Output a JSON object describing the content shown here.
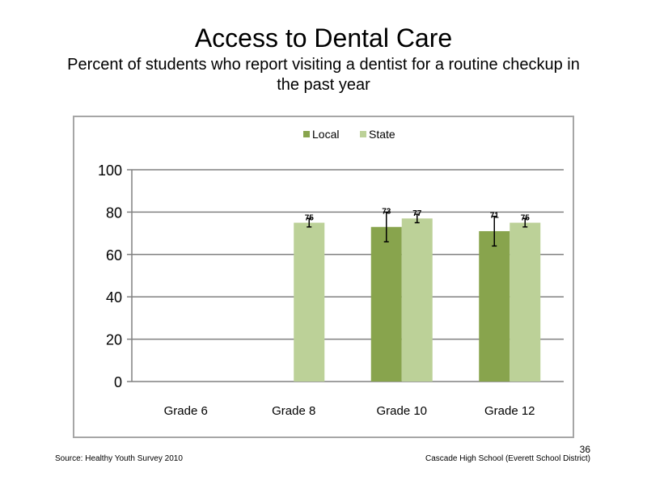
{
  "slide": {
    "title": "Access to Dental Care",
    "subtitle": "Percent of students who report visiting a dentist for a routine checkup in the past year",
    "source": "Source: Healthy Youth Survey 2010",
    "school": "Cascade High School (Everett School District)",
    "page_number": "36"
  },
  "chart_data": {
    "type": "bar",
    "title": "",
    "xlabel": "",
    "ylabel": "",
    "categories": [
      "Grade 6",
      "Grade 8",
      "Grade 10",
      "Grade 12"
    ],
    "ylim": [
      0,
      100
    ],
    "yticks": [
      0,
      20,
      40,
      60,
      80,
      100
    ],
    "grid": true,
    "legend_position": "top",
    "series": [
      {
        "name": "Local",
        "color": "#88a44d",
        "values": [
          null,
          null,
          73,
          71
        ],
        "error_low": [
          null,
          null,
          66,
          64
        ],
        "error_high": [
          null,
          null,
          80,
          78
        ]
      },
      {
        "name": "State",
        "color": "#bcd198",
        "values": [
          null,
          75,
          77,
          75
        ],
        "error_low": [
          null,
          73,
          75,
          73
        ],
        "error_high": [
          null,
          77,
          79,
          77
        ]
      }
    ]
  }
}
